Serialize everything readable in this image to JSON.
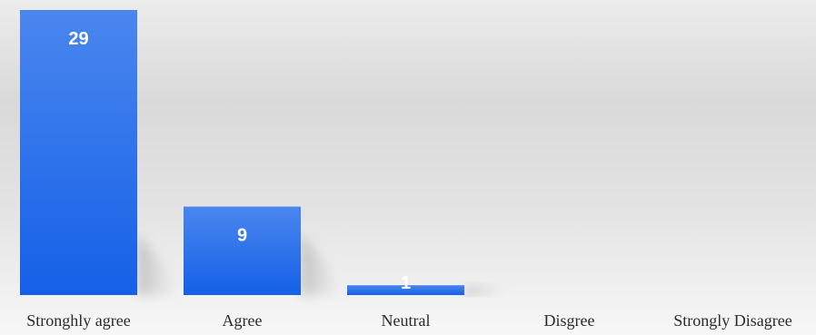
{
  "chart_data": {
    "type": "bar",
    "title": "",
    "xlabel": "",
    "ylabel": "",
    "categories": [
      "Stronghly agree",
      "Agree",
      "Neutral",
      "Disgree",
      "Strongly Disagree"
    ],
    "values": [
      29,
      9,
      1,
      0,
      0
    ],
    "data_labels": [
      "29",
      "9",
      "1",
      "",
      ""
    ],
    "ylim": [
      0,
      29
    ],
    "grid": false,
    "legend": "none",
    "colors": {
      "bar_top": "#4a86ee",
      "bar_bottom": "#1560e8",
      "label": "#ffffff"
    }
  }
}
